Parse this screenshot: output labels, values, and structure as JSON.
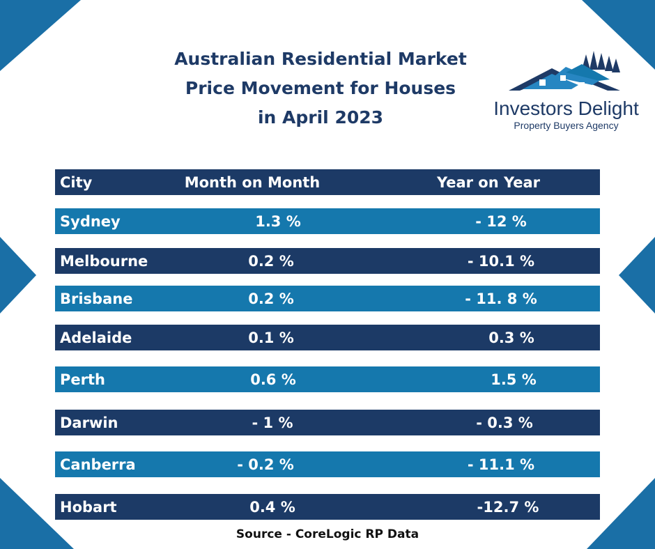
{
  "title_lines": [
    "Australian Residential Market",
    "Price Movement for Houses",
    "in April 2023"
  ],
  "logo": {
    "name": "Investors Delight",
    "tagline": "Property Buyers Agency"
  },
  "table": {
    "headers": {
      "city": "City",
      "mom": "Month on Month",
      "yoy": "Year on Year"
    },
    "rows": [
      {
        "city": "Sydney",
        "mom": "1.3 %",
        "yoy": "- 12 %"
      },
      {
        "city": "Melbourne",
        "mom": "0.2 %",
        "yoy": "- 10.1 %"
      },
      {
        "city": "Brisbane",
        "mom": "0.2 %",
        "yoy": "- 11. 8 %"
      },
      {
        "city": "Adelaide",
        "mom": "0.1 %",
        "yoy": "0.3 %"
      },
      {
        "city": "Perth",
        "mom": "0.6 %",
        "yoy": "1.5 %"
      },
      {
        "city": "Darwin",
        "mom": "- 1 %",
        "yoy": "- 0.3 %"
      },
      {
        "city": "Canberra",
        "mom": "- 0.2 %",
        "yoy": "- 11.1 %"
      },
      {
        "city": "Hobart",
        "mom": "0.4 %",
        "yoy": "-12.7 %"
      }
    ]
  },
  "source": "Source - CoreLogic RP Data",
  "colors": {
    "navy": "#1c3a66",
    "blue": "#1578ad",
    "title": "#1e3a66"
  }
}
